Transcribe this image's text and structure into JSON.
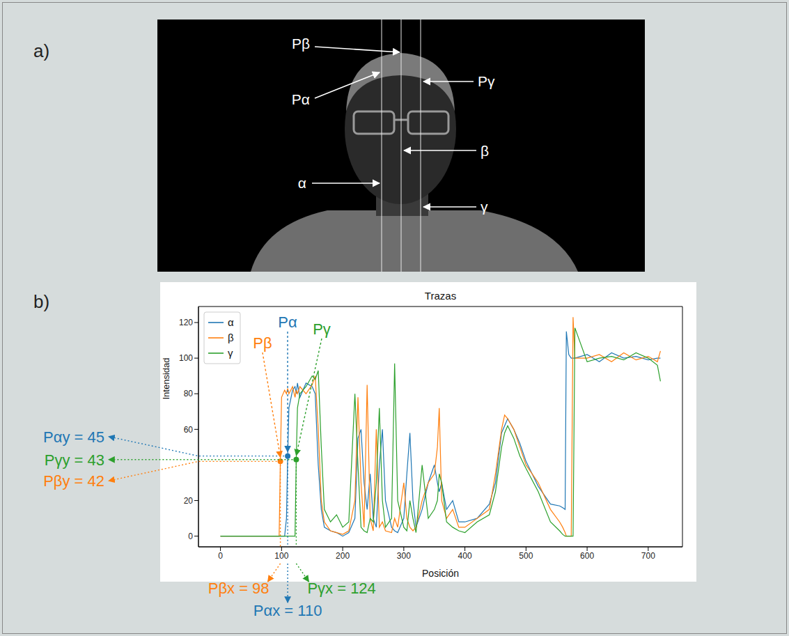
{
  "panels": [
    {
      "label": "a)",
      "image_labels": [
        "Pβ",
        "Pα",
        "Pγ",
        "β",
        "α",
        "γ"
      ]
    },
    {
      "label": "b)"
    }
  ],
  "chart_data": {
    "type": "line",
    "title": "Trazas",
    "x_label": "Posición",
    "y_label": "Intensidad",
    "x": [
      0,
      90,
      96,
      98,
      100,
      105,
      108,
      110,
      112,
      118,
      122,
      124,
      126,
      130,
      140,
      150,
      155,
      160,
      165,
      170,
      180,
      190,
      200,
      210,
      220,
      225,
      230,
      235,
      240,
      245,
      250,
      255,
      260,
      265,
      270,
      280,
      285,
      290,
      300,
      305,
      310,
      315,
      320,
      330,
      340,
      350,
      355,
      358,
      362,
      370,
      380,
      390,
      400,
      420,
      440,
      450,
      460,
      465,
      470,
      480,
      490,
      500,
      520,
      540,
      555,
      560,
      564,
      566,
      570,
      574,
      577,
      580,
      600,
      620,
      640,
      660,
      680,
      700,
      715,
      720
    ],
    "series": [
      {
        "name": "α",
        "color": "#1f77b4",
        "values": [
          0,
          0,
          0,
          0,
          0,
          0,
          10,
          45,
          72,
          82,
          84,
          80,
          86,
          78,
          86,
          84,
          80,
          40,
          15,
          5,
          3,
          2,
          0,
          2,
          10,
          55,
          60,
          30,
          15,
          35,
          10,
          5,
          40,
          60,
          20,
          5,
          3,
          2,
          10,
          35,
          58,
          20,
          5,
          15,
          30,
          40,
          30,
          25,
          30,
          15,
          20,
          8,
          8,
          10,
          18,
          30,
          58,
          62,
          66,
          60,
          52,
          42,
          28,
          18,
          17,
          16,
          15,
          115,
          102,
          100,
          100,
          100,
          102,
          98,
          103,
          100,
          101,
          99,
          100,
          100
        ]
      },
      {
        "name": "β",
        "color": "#ff7f0e",
        "values": [
          0,
          0,
          0,
          42,
          78,
          82,
          80,
          83,
          80,
          84,
          78,
          82,
          80,
          84,
          80,
          85,
          90,
          60,
          20,
          8,
          3,
          2,
          1,
          3,
          20,
          78,
          30,
          5,
          85,
          10,
          3,
          60,
          5,
          8,
          3,
          2,
          10,
          5,
          30,
          10,
          5,
          3,
          5,
          20,
          30,
          35,
          50,
          72,
          20,
          10,
          15,
          5,
          5,
          10,
          15,
          35,
          60,
          68,
          66,
          60,
          50,
          40,
          30,
          15,
          8,
          5,
          2,
          0,
          0,
          0,
          123,
          100,
          100,
          102,
          98,
          103,
          99,
          101,
          98,
          104
        ]
      },
      {
        "name": "γ",
        "color": "#2ca02c",
        "values": [
          0,
          0,
          0,
          0,
          0,
          0,
          0,
          0,
          0,
          0,
          0,
          43,
          72,
          80,
          84,
          90,
          88,
          93,
          50,
          15,
          8,
          12,
          5,
          8,
          80,
          40,
          5,
          3,
          2,
          10,
          8,
          30,
          72,
          20,
          5,
          10,
          97,
          20,
          5,
          3,
          20,
          10,
          2,
          40,
          10,
          15,
          20,
          35,
          30,
          8,
          5,
          3,
          2,
          8,
          12,
          25,
          50,
          58,
          62,
          55,
          45,
          38,
          25,
          8,
          3,
          1,
          0,
          0,
          0,
          0,
          0,
          117,
          98,
          100,
          101,
          99,
          103,
          100,
          96,
          87
        ]
      }
    ],
    "xlim": [
      -36,
      756
    ],
    "xticks": [
      0,
      100,
      200,
      300,
      400,
      500,
      600,
      700
    ],
    "ylim": [
      -6,
      129
    ],
    "yticks": [
      0,
      20,
      60,
      80,
      100,
      120
    ],
    "legend": "upper left",
    "grid": false,
    "annotations": [
      {
        "label": "Pα",
        "series": "α",
        "x": 110,
        "y": 45,
        "x_text": "Pαx = 110",
        "y_text": "Pαy = 45"
      },
      {
        "label": "Pβ",
        "series": "β",
        "x": 98,
        "y": 42,
        "x_text": "Pβx = 98",
        "y_text": "Pβy = 42"
      },
      {
        "label": "Pγ",
        "series": "γ",
        "x": 124,
        "y": 43,
        "x_text": "Pγx = 124",
        "y_text": "Pγy = 43"
      }
    ]
  }
}
